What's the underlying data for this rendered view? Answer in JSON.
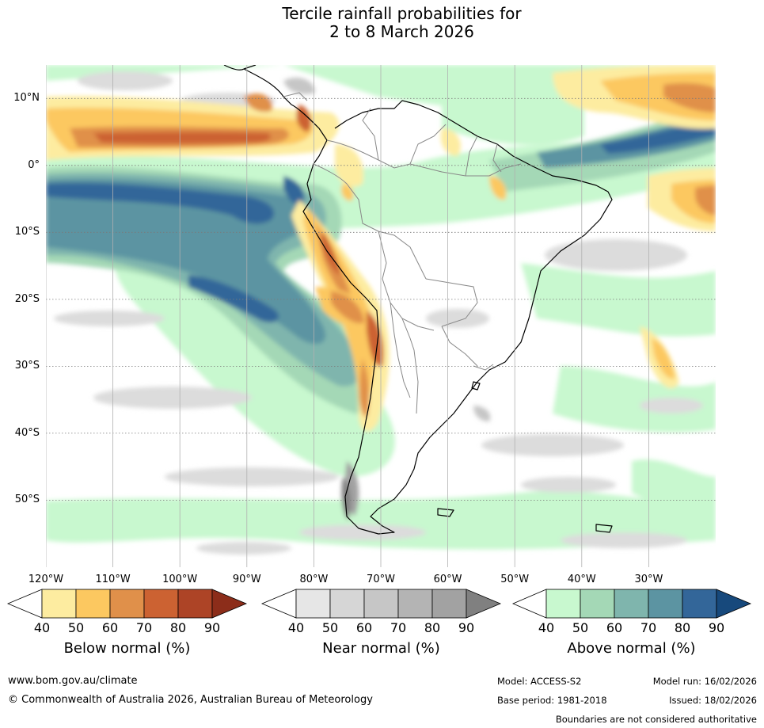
{
  "title": {
    "line1": "Tercile rainfall probabilities for",
    "line2": "2 to 8 March 2026"
  },
  "map": {
    "lat_labels": [
      "10°N",
      "0°",
      "10°S",
      "20°S",
      "30°S",
      "40°S",
      "50°S"
    ],
    "lon_labels": [
      "120°W",
      "110°W",
      "100°W",
      "90°W",
      "80°W",
      "70°W",
      "60°W",
      "50°W",
      "40°W",
      "30°W"
    ],
    "extent": {
      "lon_min": -120,
      "lon_max": -20,
      "lat_min": -60,
      "lat_max": 15
    }
  },
  "colorbars": [
    {
      "label": "Below normal (%)",
      "ticks": [
        "40",
        "50",
        "60",
        "70",
        "80",
        "90"
      ],
      "colors": [
        "#fdeca0",
        "#fcc860",
        "#e0904a",
        "#cc6232",
        "#ad4426",
        "#8c2d1a"
      ]
    },
    {
      "label": "Near normal (%)",
      "ticks": [
        "40",
        "50",
        "60",
        "70",
        "80",
        "90"
      ],
      "colors": [
        "#e6e6e6",
        "#d6d6d6",
        "#c6c6c6",
        "#b4b4b4",
        "#a2a2a2",
        "#808080"
      ]
    },
    {
      "label": "Above normal (%)",
      "ticks": [
        "40",
        "50",
        "60",
        "70",
        "80",
        "90"
      ],
      "colors": [
        "#c8f8cf",
        "#a4d8b6",
        "#7fb5ad",
        "#5c94a2",
        "#336699",
        "#17497c"
      ]
    }
  ],
  "footer": {
    "url": "www.bom.gov.au/climate",
    "copyright": "© Commonwealth of Australia 2026, Australian Bureau of Meteorology",
    "model": "Model: ACCESS-S2",
    "model_run": "Model run: 16/02/2026",
    "base_period": "Base period: 1981-2018",
    "issued": "Issued: 18/02/2026",
    "disclaimer": "Boundaries are not considered authoritative"
  }
}
